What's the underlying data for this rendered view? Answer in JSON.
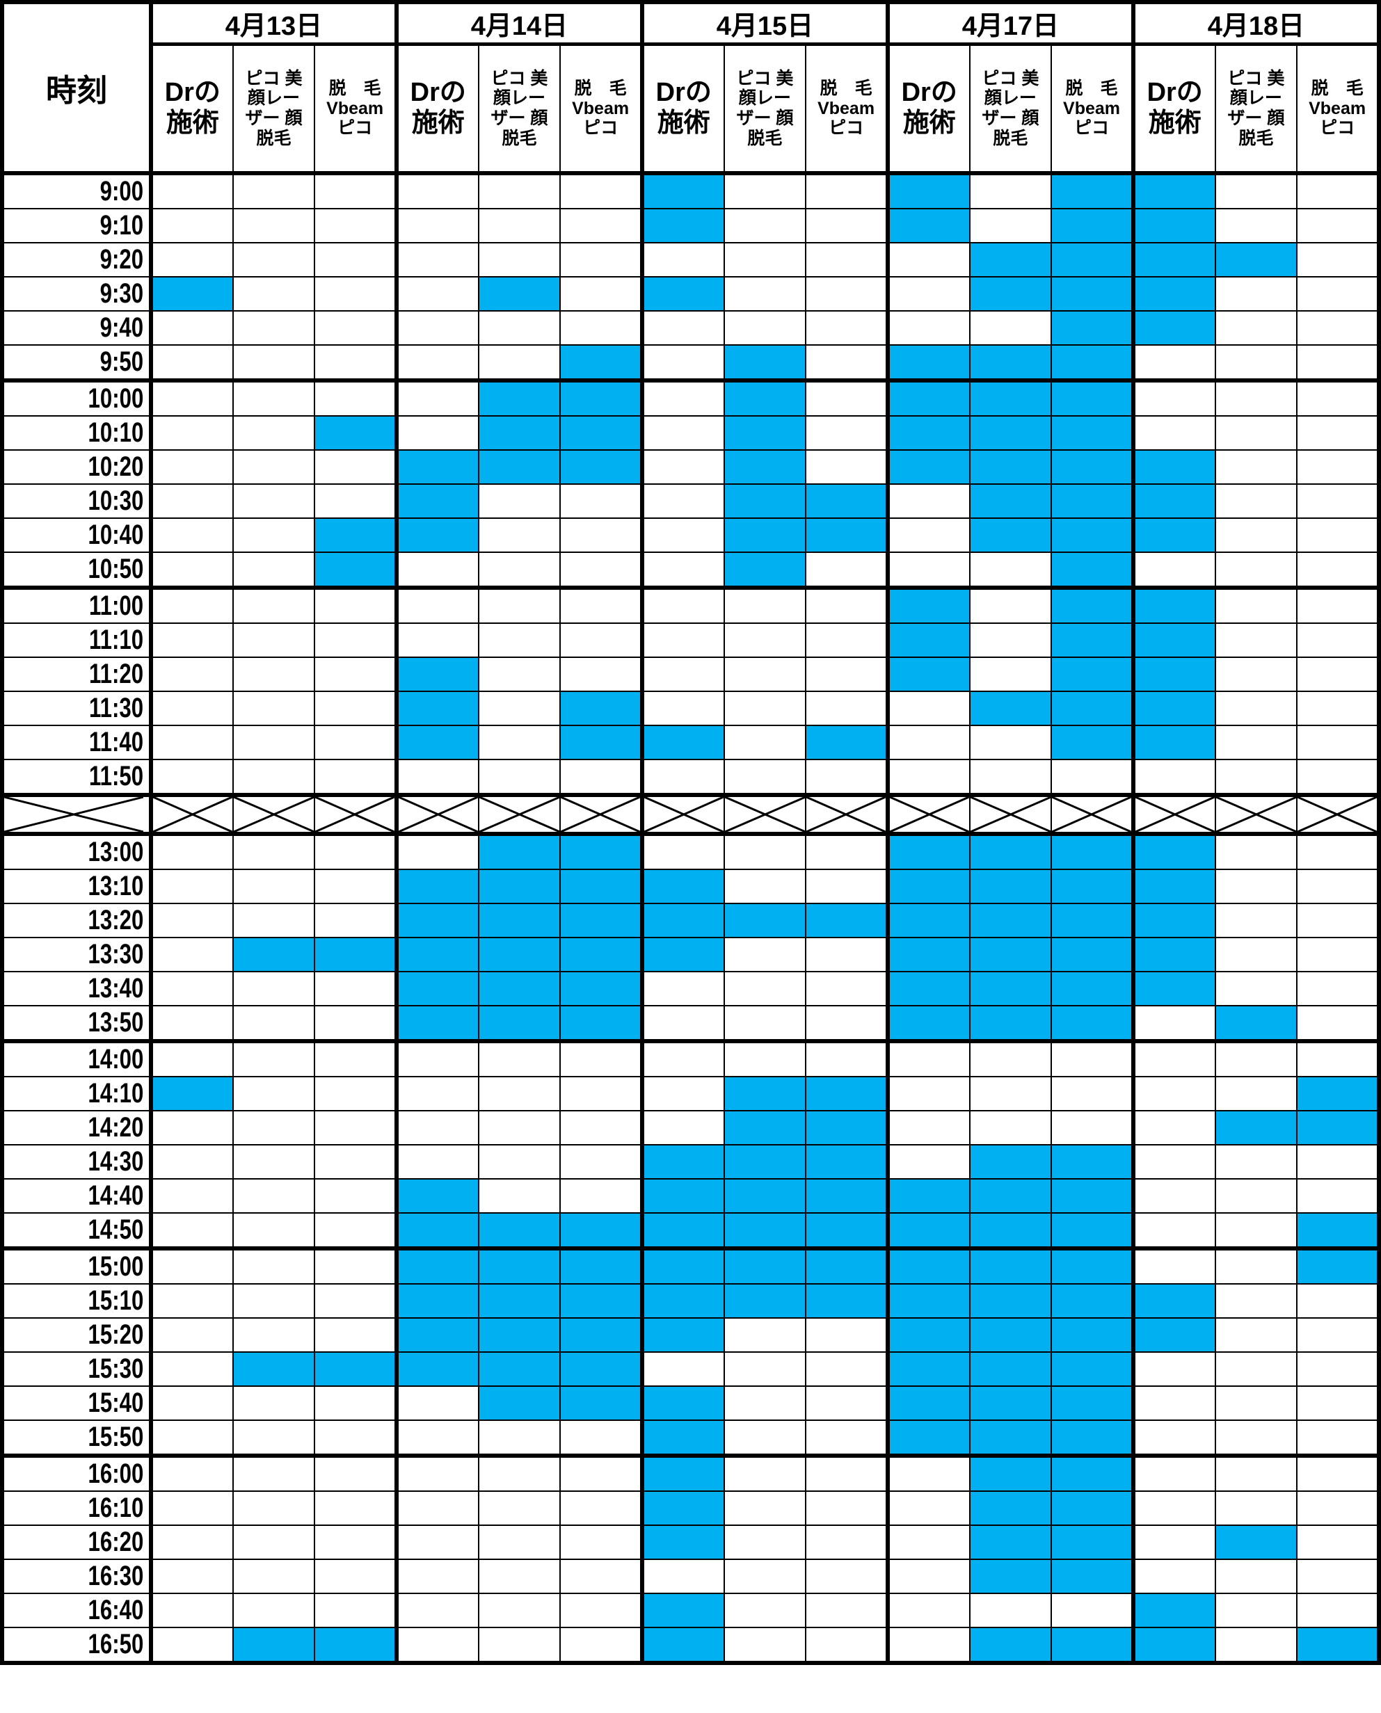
{
  "header": {
    "time_label": "時刻",
    "dates": [
      "4月13日",
      "4月14日",
      "4月15日",
      "4月17日",
      "4月18日"
    ],
    "columns": [
      {
        "line1": "Drの",
        "line2": "施術",
        "line3": ""
      },
      {
        "line1": "ピコ 美",
        "line2": "顔レー",
        "line3": "ザー 顔",
        "line4": "脱毛"
      },
      {
        "line1": "脱　毛",
        "line2": "Vbeam",
        "line3": "ピコ"
      }
    ]
  },
  "colors": {
    "booked": "#00b0f0",
    "free": "#ffffff"
  },
  "legend_note": "booked: 1 = filled cell, per date groups of [Drの施術, ピコ美顔レーザー顔脱毛, 脱毛Vbeamピコ]",
  "morning": [
    {
      "time": "9:00",
      "booked": "000 000 100 101 100"
    },
    {
      "time": "9:10",
      "booked": "000 000 100 101 100"
    },
    {
      "time": "9:20",
      "booked": "000 000 000 011 110"
    },
    {
      "time": "9:30",
      "booked": "100 010 100 011 100"
    },
    {
      "time": "9:40",
      "booked": "000 000 000 001 100"
    },
    {
      "time": "9:50",
      "booked": "000 001 010 111 000"
    },
    {
      "time": "10:00",
      "booked": "000 011 010 111 000"
    },
    {
      "time": "10:10",
      "booked": "001 011 010 111 000"
    },
    {
      "time": "10:20",
      "booked": "000 111 010 111 100"
    },
    {
      "time": "10:30",
      "booked": "000 100 011 011 100"
    },
    {
      "time": "10:40",
      "booked": "001 100 011 011 100"
    },
    {
      "time": "10:50",
      "booked": "001 000 010 001 000"
    },
    {
      "time": "11:00",
      "booked": "000 000 000 101 100"
    },
    {
      "time": "11:10",
      "booked": "000 000 000 101 100"
    },
    {
      "time": "11:20",
      "booked": "000 100 000 101 100"
    },
    {
      "time": "11:30",
      "booked": "000 101 000 011 100"
    },
    {
      "time": "11:40",
      "booked": "000 101 101 001 100"
    },
    {
      "time": "11:50",
      "booked": "000 000 000 000 000"
    }
  ],
  "afternoon": [
    {
      "time": "13:00",
      "booked": "000 011 000 111 100"
    },
    {
      "time": "13:10",
      "booked": "000 111 100 111 100"
    },
    {
      "time": "13:20",
      "booked": "000 111 111 111 100"
    },
    {
      "time": "13:30",
      "booked": "011 111 100 111 100"
    },
    {
      "time": "13:40",
      "booked": "000 111 000 111 100"
    },
    {
      "time": "13:50",
      "booked": "000 111 000 111 010"
    },
    {
      "time": "14:00",
      "booked": "000 000 000 000 000"
    },
    {
      "time": "14:10",
      "booked": "100 000 011 000 001"
    },
    {
      "time": "14:20",
      "booked": "000 000 011 000 011"
    },
    {
      "time": "14:30",
      "booked": "000 000 111 011 000"
    },
    {
      "time": "14:40",
      "booked": "000 100 111 111 000"
    },
    {
      "time": "14:50",
      "booked": "000 111 111 111 001"
    },
    {
      "time": "15:00",
      "booked": "000 111 111 111 001"
    },
    {
      "time": "15:10",
      "booked": "000 111 111 111 100"
    },
    {
      "time": "15:20",
      "booked": "000 111 100 111 100"
    },
    {
      "time": "15:30",
      "booked": "011 111 000 111 000"
    },
    {
      "time": "15:40",
      "booked": "000 011 100 111 000"
    },
    {
      "time": "15:50",
      "booked": "000 000 100 111 000"
    },
    {
      "time": "16:00",
      "booked": "000 000 100 011 000"
    },
    {
      "time": "16:10",
      "booked": "000 000 100 011 000"
    },
    {
      "time": "16:20",
      "booked": "000 000 100 011 010"
    },
    {
      "time": "16:30",
      "booked": "000 000 000 011 000"
    },
    {
      "time": "16:40",
      "booked": "000 000 100 000 100"
    },
    {
      "time": "16:50",
      "booked": "011 000 100 011 101"
    }
  ]
}
